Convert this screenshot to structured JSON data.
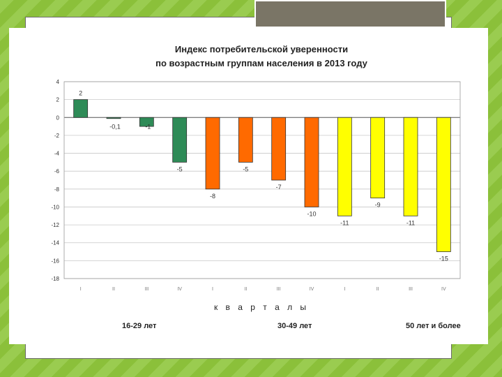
{
  "chart_data": {
    "type": "bar",
    "title_line1": "Индекс потребительской уверенности",
    "title_line2": "по возрастным группам населения в 2013 году",
    "xlabel": "к в а р т а л ы",
    "ylim": [
      -18,
      4
    ],
    "yticks": [
      "4",
      "2",
      "0",
      "-2",
      "-4",
      "-6",
      "-8",
      "-10",
      "-12",
      "-14",
      "-16",
      "-18"
    ],
    "categories": [
      "I",
      "II",
      "III",
      "IV",
      "I",
      "II",
      "III",
      "IV",
      "I",
      "II",
      "III",
      "IV"
    ],
    "values": [
      2,
      -0.1,
      -1,
      -5,
      -8,
      -5,
      -7,
      -10,
      -11,
      -9,
      -11,
      -15
    ],
    "data_labels": [
      "2",
      "-0,1",
      "-1",
      "-5",
      "-8",
      "-5",
      "-7",
      "-10",
      "-11",
      "-9",
      "-11",
      "-15"
    ],
    "groups": [
      {
        "label": "16-29 лет",
        "color": "#2e8b57"
      },
      {
        "label": "30-49 лет",
        "color": "#ff6a00"
      },
      {
        "label": "50 лет и более",
        "color": "#ffff00"
      }
    ],
    "grid": true
  }
}
